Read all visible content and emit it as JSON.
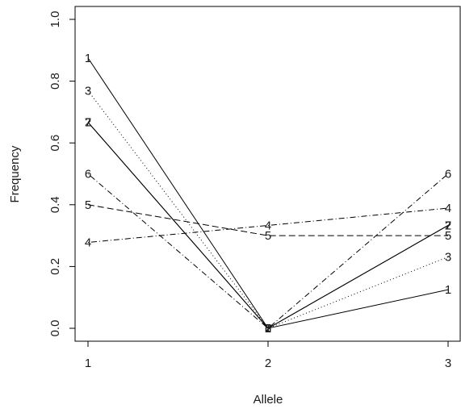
{
  "chart_data": {
    "type": "line",
    "title": "",
    "xlabel": "Allele",
    "ylabel": "Frequency",
    "x": [
      1,
      2,
      3
    ],
    "xlim": [
      1,
      3
    ],
    "ylim": [
      0,
      1
    ],
    "x_ticks": [
      "1",
      "2",
      "3"
    ],
    "y_ticks": [
      "0.0",
      "0.2",
      "0.4",
      "0.6",
      "0.8",
      "1.0"
    ],
    "grid": false,
    "legend": "none",
    "series": [
      {
        "label": "1",
        "values": [
          0.875,
          0.0,
          0.125
        ],
        "line_style": "solid",
        "color": "#000000"
      },
      {
        "label": "2",
        "values": [
          0.667,
          0.0,
          0.333
        ],
        "line_style": "solid",
        "color": "#000000"
      },
      {
        "label": "3",
        "values": [
          0.769,
          0.0,
          0.231
        ],
        "line_style": "dotted",
        "color": "#000000"
      },
      {
        "label": "4",
        "values": [
          0.278,
          0.333,
          0.389
        ],
        "line_style": "dotdash",
        "color": "#000000"
      },
      {
        "label": "5",
        "values": [
          0.4,
          0.3,
          0.3
        ],
        "line_style": "dashed",
        "color": "#000000"
      },
      {
        "label": "6",
        "values": [
          0.5,
          0.0,
          0.5
        ],
        "line_style": "dotdash",
        "color": "#000000"
      },
      {
        "label": "7",
        "values": [
          0.667,
          0.0,
          0.333
        ],
        "line_style": "solid",
        "color": "#000000"
      }
    ]
  }
}
